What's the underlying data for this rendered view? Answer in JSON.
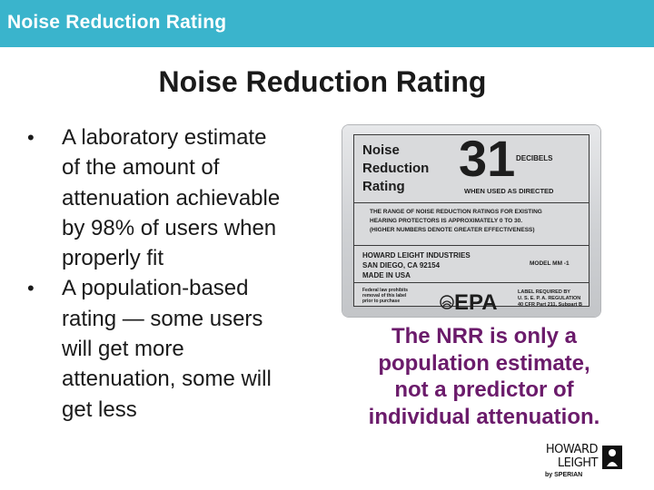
{
  "header": {
    "title": "Noise Reduction Rating"
  },
  "slide": {
    "heading": "Noise Reduction Rating",
    "bullet_symbol": "•",
    "bullets": [
      {
        "lines": [
          "A laboratory estimate",
          "of the amount of",
          "attenuation achievable",
          "by 98% of users when",
          "properly fit"
        ]
      },
      {
        "lines": [
          "A population-based",
          "rating — some users",
          "will get more",
          "attenuation, some will",
          "get less"
        ]
      }
    ],
    "caption_lines": [
      "The NRR is only a",
      "population estimate,",
      "not a predictor of",
      "individual attenuation."
    ]
  },
  "label": {
    "name_lines": [
      "Noise",
      "Reduction",
      "Rating"
    ],
    "number": "31",
    "decibels": "DECIBELS",
    "when_used": "WHEN USED AS DIRECTED",
    "range_lines": [
      "THE RANGE OF NOISE REDUCTION RATINGS FOR EXISTING",
      "HEARING PROTECTORS IS APPROXIMATELY 0 TO 30.",
      "(HIGHER NUMBERS DENOTE GREATER EFFECTIVENESS)"
    ],
    "company_lines": [
      "HOWARD LEIGHT INDUSTRIES",
      "SAN DIEGO, CA 92154",
      "MADE IN USA"
    ],
    "model": "MODEL MM -1",
    "federal_lines": [
      "Federal law prohibits",
      "removal of this label",
      "prior to purchase"
    ],
    "epa": "EPA",
    "required_lines": [
      "LABEL REQUIRED BY",
      "U. S. E. P. A. REGULATION",
      "40 CFR Part 211, Subpart B"
    ]
  },
  "logo": {
    "lines": [
      "HOWARD",
      "LEIGHT"
    ],
    "by": "by SPERIAN"
  },
  "colors": {
    "topbar": "#3ab4cc",
    "caption": "#6b1b6b",
    "text": "#1a1a1a"
  }
}
